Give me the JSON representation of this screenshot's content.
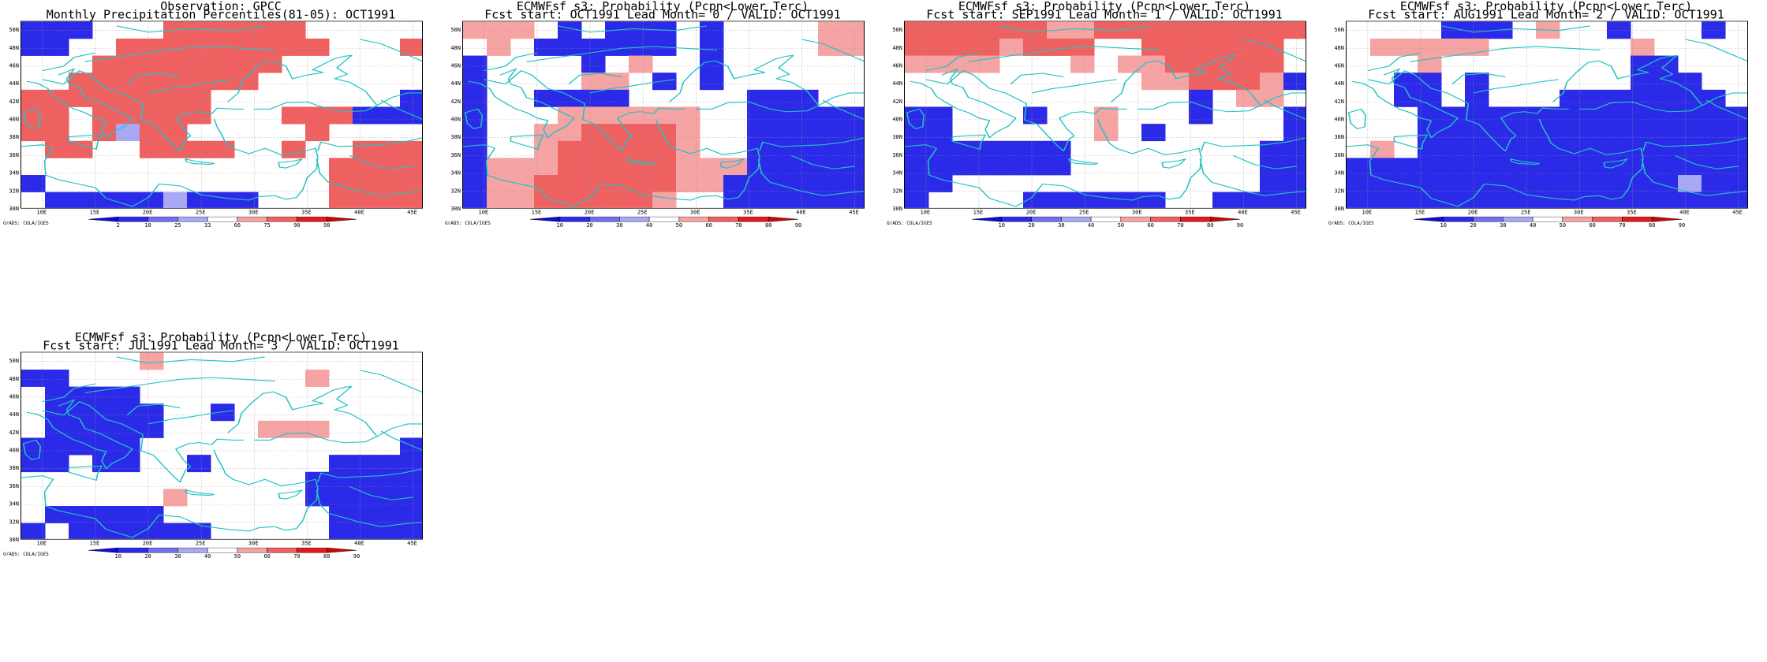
{
  "credit": "GrADS: COLA/IGES",
  "lat_labels": [
    "30N",
    "32N",
    "34N",
    "36N",
    "38N",
    "40N",
    "42N",
    "44N",
    "46N",
    "48N",
    "50N"
  ],
  "lon_labels": [
    "10E",
    "15E",
    "20E",
    "25E",
    "30E",
    "35E",
    "40E",
    "45E"
  ],
  "colors": {
    "grid_line": "#9a9a9a",
    "coast": "#22c3c3",
    "blue_dark": "#2a2ae8",
    "blue_mid": "#6f6ff0",
    "blue_light": "#a8a8f4",
    "red_light": "#f6a3a3",
    "red_mid": "#ef6060",
    "red_dark": "#e31a1a"
  },
  "palette_obs": [
    "#0b0bd6",
    "#2a2ae8",
    "#6f6ff0",
    "#a8a8f4",
    "#ffffff",
    "#f6a3a3",
    "#ef6060",
    "#e31a1a",
    "#c80808"
  ],
  "palette_fc": [
    "#0b0bd6",
    "#2a2ae8",
    "#6f6ff0",
    "#a8a8f4",
    "#ffffff",
    "#f6a3a3",
    "#ef6060",
    "#e31a1a",
    "#c80808"
  ],
  "panels": [
    {
      "title1": "Observation: GPCC",
      "title2": "Monthly Precipitation Percentiles(81-05): OCT1991",
      "cbar_labels": [
        "2",
        "10",
        "25",
        "33",
        "66",
        "75",
        "90",
        "98"
      ],
      "cbar_type": "obs",
      "grid": [
        "BBBWWWRRRRRRWWWWW",
        "BBWWRRRRRRRRRWWWR",
        "WWWRRRRRRRRWWWWWW",
        "WWRRRRRRRRWWWWWWW",
        "RRRRRRRRWWWWWWWWB",
        "RRWRRRRRWWWRRRBBB",
        "RRWRbRRWWWWWRWWWW",
        "WRRWWRRRRWWRWWRRR",
        "WWWWWWWWWWWWWRRRR",
        "BWWWWWWWWWWWWRRRR",
        "WBBBBBbBBBWWWRRRR"
      ]
    },
    {
      "title1": "ECMWFsf s3: Probability (Pcpn<Lower Terc)",
      "title2": "Fcst start: OCT1991   Lead Month= 0 / VALID: OCT1991",
      "cbar_labels": [
        "10",
        "20",
        "30",
        "40",
        "50",
        "60",
        "70",
        "80",
        "90"
      ],
      "cbar_type": "fc",
      "grid": [
        "rrrWBWBBBWBWWWWrr",
        "WrWBBBBBBWBWWWWrr",
        "BWWWWBWrWWBWWWWWW",
        "BWWWWrrWBWBWWWWWW",
        "BWWBBBBWWWWWBBBWW",
        "BWWWrrrrrrWWBBBBB",
        "BWWrrRRRRrWWBBBBB",
        "BWWrRRRRRrWWBBBBB",
        "BrrrRRRRRrrrBBBBB",
        "BrrRRRRRRrrBBBBBB",
        "BrrRRRRRrWWBBBBBB"
      ]
    },
    {
      "title1": "ECMWFsf s3: Probability (Pcpn<Lower Terc)",
      "title2": "Fcst start: SEP1991   Lead Month= 1 / VALID: OCT1991",
      "cbar_labels": [
        "10",
        "20",
        "30",
        "40",
        "50",
        "60",
        "70",
        "80",
        "90"
      ],
      "cbar_type": "fc",
      "grid": [
        "RRRRRRrrRRRRRRRRR",
        "RRRRrRRRWWRRRRRRW",
        "rrrrWWWrWrrRRRRRW",
        "WWWWWWWWWWrrRRRrB",
        "WWWWWWWWWWWWBWrrW",
        "BBWWWBWWrWWWBWWWB",
        "BBWWWWWWrWBWWWWWB",
        "BBBBBBBWWWWWWWWBB",
        "BBBBBBBWWWWWWWWBB",
        "BBWWWWWWWWWWWWWBB",
        "BWWWWBBBBBBWWBBBB"
      ]
    },
    {
      "title1": "ECMWFsf s3: Probability (Pcpn<Lower Terc)",
      "title2": "Fcst start: AUG1991   Lead Month= 2 / VALID: OCT1991",
      "cbar_labels": [
        "10",
        "20",
        "30",
        "40",
        "50",
        "60",
        "70",
        "80",
        "90"
      ],
      "cbar_type": "fc",
      "grid": [
        "WWWWBBBWrWWBWWWBW",
        "WrrrrrWWWWWWrWWWW",
        "WWWrWWWWWWWWBBWWW",
        "WWBBWBWWWWWWBBBWW",
        "WWBBWBWWWBBBBBBBW",
        "WWWBBBBBBBBBBBBBB",
        "WWWBBBBBBBBBBBBBB",
        "WrWBBBBBBBBBBBBBB",
        "BBBBBBBBBBBBBBBBB",
        "BBBBBBBBBBBBBBbBB",
        "BBBBBBBBBBBBBBBBB"
      ]
    },
    {
      "title1": "ECMWFsf s3: Probability (Pcpn<Lower Terc)",
      "title2": "Fcst start: JUL1991   Lead Month= 3 / VALID: OCT1991",
      "cbar_labels": [
        "10",
        "20",
        "30",
        "40",
        "50",
        "60",
        "70",
        "80",
        "90"
      ],
      "cbar_type": "fc",
      "grid": [
        "WWWWWrWWWWWWWWWWW",
        "BBWWWWWWWWWWrWWWW",
        "WBBBBWWWWWWWWWWWW",
        "WBBBBBWWBWWWWWWWW",
        "WBBBBBWWWWrrrWWWW",
        "BBBBBWWWWWWWWWWWB",
        "BBWBBWWBWWWWWBBBB",
        "WWWWWWWWWWWWBBBBB",
        "WWWWWWrWWWWWBBBBB",
        "WBBBBBWWWWWWWBBBB",
        "BWBBBBBBWWWWWBBBB"
      ]
    }
  ]
}
